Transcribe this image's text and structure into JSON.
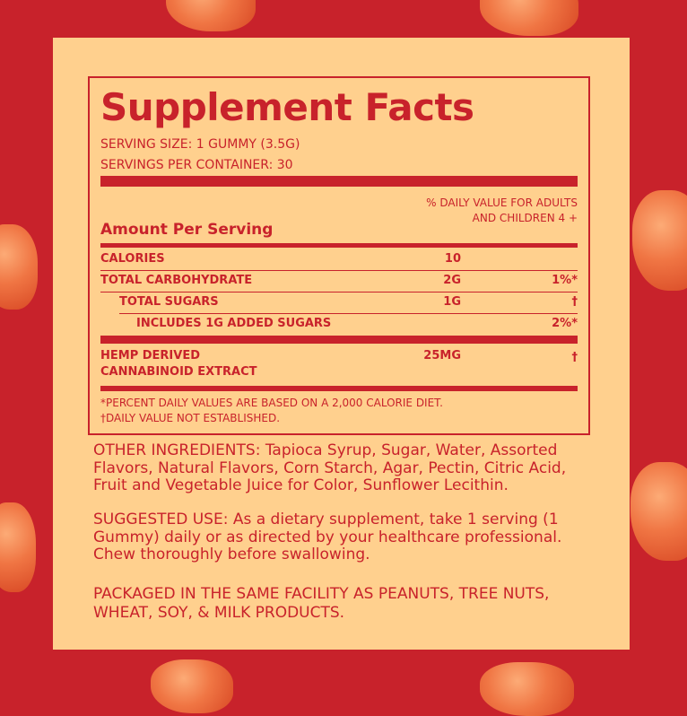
{
  "colors": {
    "background": "#c8222b",
    "panel": "#ffd08e",
    "text": "#c8222b"
  },
  "label": {
    "title": "Supplement Facts",
    "serving_size": "SERVING SIZE: 1 GUMMY (3.5G)",
    "servings_per_container": "SERVINGS PER CONTAINER: 30",
    "dv_header_line1": "% DAILY VALUE FOR ADULTS",
    "dv_header_line2": "AND CHILDREN 4 +",
    "amount_per_serving": "Amount Per Serving",
    "rows": [
      {
        "name": "CALORIES",
        "amount": "10",
        "dv": ""
      },
      {
        "name": "TOTAL CARBOHYDRATE",
        "amount": "2G",
        "dv": "1%*"
      },
      {
        "name": "TOTAL SUGARS",
        "amount": "1G",
        "dv": "†"
      },
      {
        "name": "INCLUDES 1G ADDED SUGARS",
        "amount": "",
        "dv": "2%*"
      },
      {
        "name_line1": "HEMP DERIVED",
        "name_line2": "CANNABINOID EXTRACT",
        "amount": "25MG",
        "dv": "†"
      }
    ],
    "footnote1": "*PERCENT DAILY VALUES ARE BASED ON A 2,000 CALORIE DIET.",
    "footnote2": "†DAILY VALUE NOT ESTABLISHED."
  },
  "other_ingredients": "OTHER INGREDIENTS: Tapioca Syrup, Sugar, Water, Assorted Flavors, Natural Flavors, Corn Starch, Agar, Pectin, Citric Acid, Fruit and Vegetable Juice for Color, Sunflower Lecithin.",
  "suggested_use": "SUGGESTED USE: As a dietary supplement, take 1 serving (1 Gummy) daily or as directed by your healthcare professional. Chew thoroughly before swallowing.",
  "allergen": "PACKAGED IN THE SAME FACILITY AS PEANUTS, TREE NUTS, WHEAT, SOY, & MILK PRODUCTS."
}
